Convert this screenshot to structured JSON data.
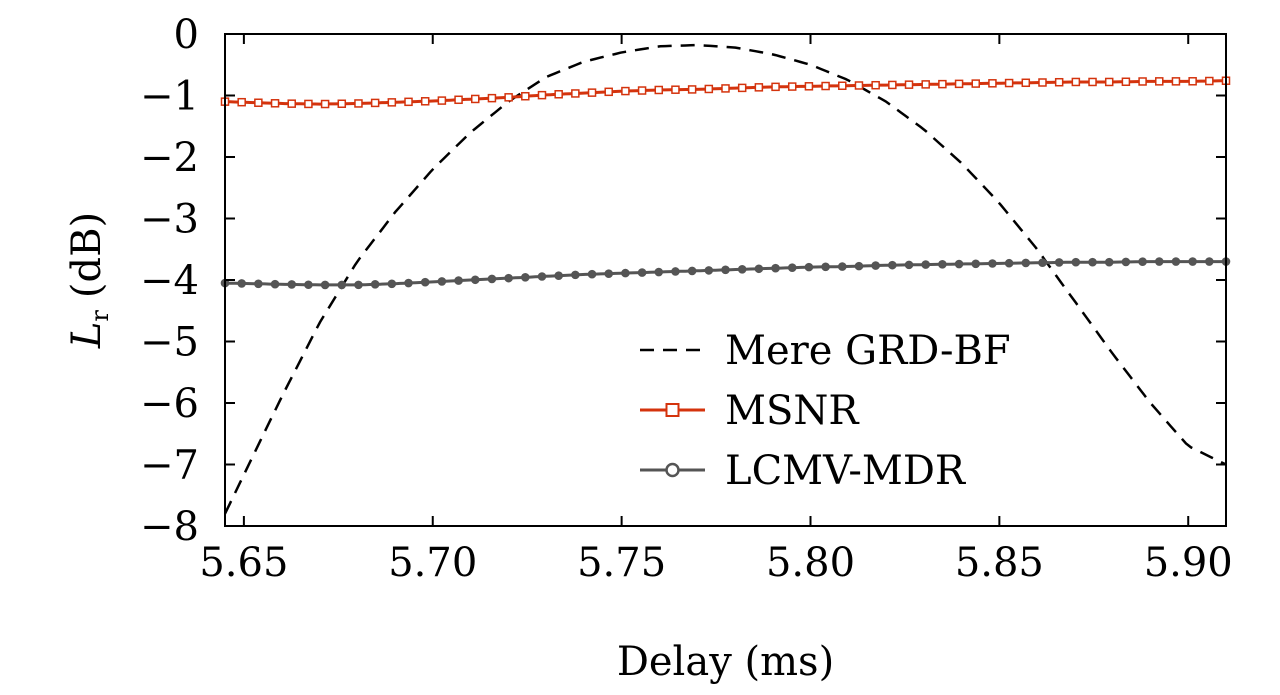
{
  "chart_data": {
    "type": "line",
    "xlabel": "Delay (ms)",
    "ylabel_main": "L",
    "ylabel_sub": "r",
    "ylabel_unit": "(dB)",
    "xlim": [
      5.645,
      5.91
    ],
    "ylim": [
      -8,
      0
    ],
    "xticks": [
      5.65,
      5.7,
      5.75,
      5.8,
      5.85,
      5.9
    ],
    "xtick_labels": [
      "5.65",
      "5.70",
      "5.75",
      "5.80",
      "5.85",
      "5.90"
    ],
    "yticks": [
      0,
      -1,
      -2,
      -3,
      -4,
      -5,
      -6,
      -7,
      -8
    ],
    "ytick_labels": [
      "0",
      "−1",
      "−2",
      "−3",
      "−4",
      "−5",
      "−6",
      "−7",
      "−8"
    ],
    "legend_position": "bottom-right",
    "grid": false,
    "series": [
      {
        "name": "Mere GRD-BF",
        "color": "#000000",
        "style": "dashed",
        "marker": "none",
        "x": [
          5.645,
          5.66,
          5.67,
          5.68,
          5.69,
          5.7,
          5.71,
          5.72,
          5.73,
          5.74,
          5.75,
          5.76,
          5.77,
          5.78,
          5.79,
          5.8,
          5.81,
          5.82,
          5.83,
          5.84,
          5.85,
          5.86,
          5.87,
          5.88,
          5.89,
          5.9,
          5.91
        ],
        "y": [
          -7.8,
          -5.9,
          -4.7,
          -3.7,
          -2.9,
          -2.2,
          -1.6,
          -1.1,
          -0.7,
          -0.45,
          -0.3,
          -0.2,
          -0.18,
          -0.22,
          -0.33,
          -0.5,
          -0.75,
          -1.1,
          -1.55,
          -2.1,
          -2.75,
          -3.5,
          -4.35,
          -5.2,
          -6.0,
          -6.7,
          -7.0
        ]
      },
      {
        "name": "MSNR",
        "color": "#d4330d",
        "style": "solid",
        "marker": "square",
        "x": [
          5.645,
          5.66,
          5.67,
          5.68,
          5.69,
          5.7,
          5.71,
          5.72,
          5.73,
          5.74,
          5.75,
          5.76,
          5.77,
          5.78,
          5.79,
          5.8,
          5.81,
          5.82,
          5.83,
          5.84,
          5.85,
          5.86,
          5.87,
          5.88,
          5.89,
          5.9,
          5.91
        ],
        "y": [
          -1.1,
          -1.13,
          -1.14,
          -1.13,
          -1.11,
          -1.09,
          -1.06,
          -1.03,
          -0.99,
          -0.96,
          -0.93,
          -0.91,
          -0.9,
          -0.88,
          -0.86,
          -0.85,
          -0.84,
          -0.83,
          -0.82,
          -0.81,
          -0.8,
          -0.79,
          -0.78,
          -0.78,
          -0.77,
          -0.77,
          -0.76
        ]
      },
      {
        "name": "LCMV-MDR",
        "color": "#555555",
        "style": "solid",
        "marker": "circle",
        "x": [
          5.645,
          5.66,
          5.67,
          5.68,
          5.69,
          5.7,
          5.71,
          5.72,
          5.73,
          5.74,
          5.75,
          5.76,
          5.77,
          5.78,
          5.79,
          5.8,
          5.81,
          5.82,
          5.83,
          5.84,
          5.85,
          5.86,
          5.87,
          5.88,
          5.89,
          5.9,
          5.91
        ],
        "y": [
          -4.05,
          -4.07,
          -4.08,
          -4.08,
          -4.06,
          -4.03,
          -4.0,
          -3.97,
          -3.94,
          -3.91,
          -3.89,
          -3.87,
          -3.85,
          -3.83,
          -3.81,
          -3.79,
          -3.78,
          -3.76,
          -3.75,
          -3.74,
          -3.73,
          -3.72,
          -3.71,
          -3.71,
          -3.7,
          -3.7,
          -3.7
        ]
      }
    ]
  }
}
